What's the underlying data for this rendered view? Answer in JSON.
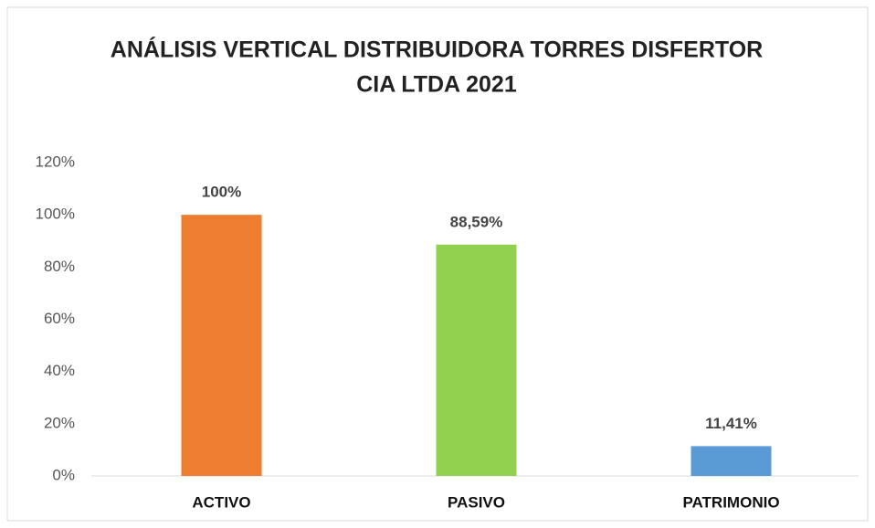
{
  "chart_data": {
    "type": "bar",
    "title": [
      "ANÁLISIS VERTICAL DISTRIBUIDORA TORRES DISFERTOR",
      "CIA LTDA 2021"
    ],
    "categories": [
      "ACTIVO",
      "PASIVO",
      "PATRIMONIO"
    ],
    "values": [
      100,
      88.59,
      11.41
    ],
    "value_labels": [
      "100%",
      "88,59%",
      "11,41%"
    ],
    "colors": [
      "#ED7D31",
      "#92D050",
      "#5B9BD5"
    ],
    "ylim": [
      0,
      120
    ],
    "yticks": [
      {
        "value": 0,
        "label": "0%"
      },
      {
        "value": 20,
        "label": "20%"
      },
      {
        "value": 40,
        "label": "40%"
      },
      {
        "value": 60,
        "label": "60%"
      },
      {
        "value": 80,
        "label": "80%"
      },
      {
        "value": 100,
        "label": "100%"
      },
      {
        "value": 120,
        "label": "120%"
      }
    ],
    "grid": false
  }
}
